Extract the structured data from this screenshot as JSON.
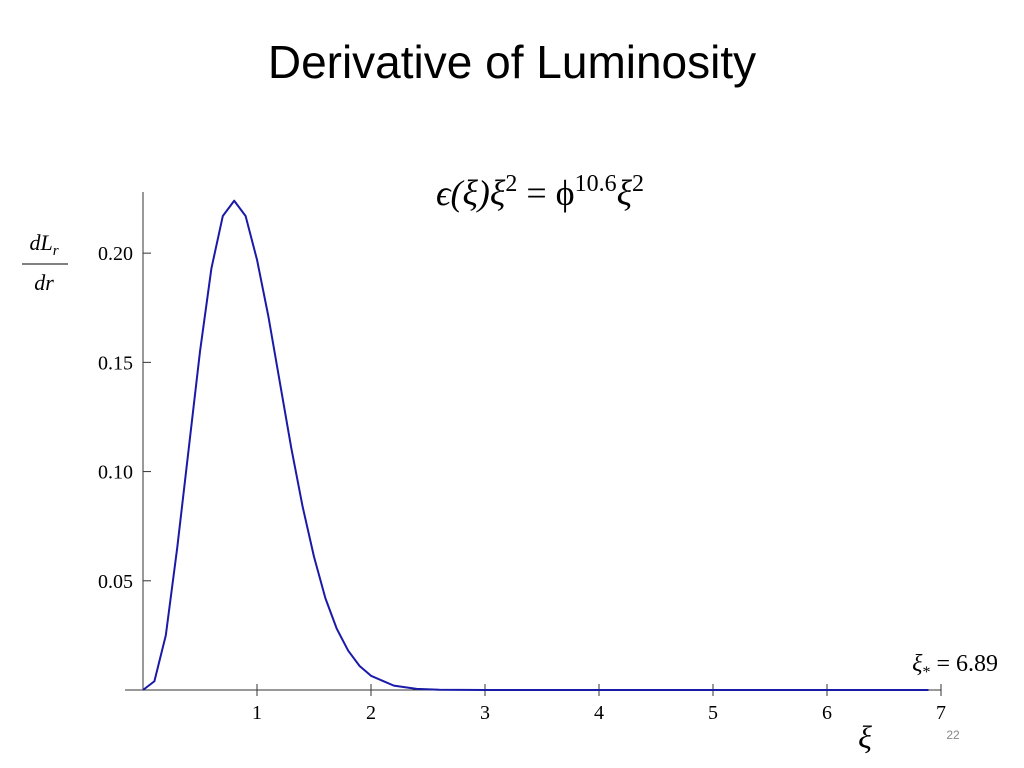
{
  "title": "Derivative of Luminosity",
  "page_number": "22",
  "chart_data": {
    "type": "line",
    "formula": [
      "ϵ(ξ)ξ",
      "2",
      " = ϕ",
      "10.6",
      "ξ",
      "2"
    ],
    "y_label": {
      "numerator": "dL",
      "subscript": "r",
      "denominator": "dr"
    },
    "x_label": "ξ",
    "annotation": [
      "ξ",
      "*",
      " = 6.89"
    ],
    "color": "#1a1aa8",
    "x": [
      0,
      0.1,
      0.2,
      0.3,
      0.4,
      0.5,
      0.6,
      0.7,
      0.8,
      0.9,
      1.0,
      1.1,
      1.2,
      1.3,
      1.4,
      1.5,
      1.6,
      1.7,
      1.8,
      1.9,
      2.0,
      2.2,
      2.4,
      2.6,
      3,
      4,
      5,
      6,
      6.89
    ],
    "values": [
      0,
      0.004,
      0.025,
      0.065,
      0.11,
      0.155,
      0.193,
      0.217,
      0.224,
      0.217,
      0.197,
      0.171,
      0.141,
      0.111,
      0.084,
      0.061,
      0.042,
      0.028,
      0.018,
      0.011,
      0.0065,
      0.002,
      0.0005,
      0.0001,
      0,
      0,
      0,
      0,
      0
    ],
    "xlim": [
      0,
      7
    ],
    "ylim": [
      0,
      0.228
    ],
    "xticks": [
      1,
      2,
      3,
      4,
      5,
      6,
      7
    ],
    "yticks": [
      {
        "value": 0.05,
        "label": "0.05"
      },
      {
        "value": 0.1,
        "label": "0.10"
      },
      0.15,
      {
        "value": 0.2,
        "label": "0.20"
      }
    ]
  }
}
